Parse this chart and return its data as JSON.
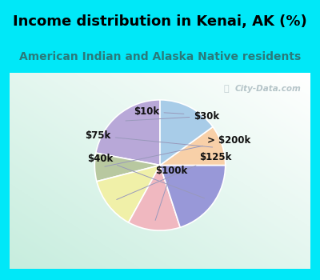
{
  "title": "Income distribution in Kenai, AK (%)",
  "subtitle": "American Indian and Alaska Native residents",
  "slices": [
    {
      "label": "$30k",
      "value": 22,
      "color": "#b8a8d8"
    },
    {
      "label": "> $200k",
      "value": 7,
      "color": "#b8c8a0"
    },
    {
      "label": "$125k",
      "value": 13,
      "color": "#f0f0a8"
    },
    {
      "label": "$100k",
      "value": 13,
      "color": "#f0b8c0"
    },
    {
      "label": "$40k",
      "value": 20,
      "color": "#9898d8"
    },
    {
      "label": "$75k",
      "value": 10,
      "color": "#f8d0a8"
    },
    {
      "label": "$10k",
      "value": 15,
      "color": "#a8cce8"
    }
  ],
  "bg_cyan": "#00e8f8",
  "bg_chart_top": "#f0faf8",
  "bg_chart_bottom": "#c8e8d8",
  "title_color": "#000000",
  "subtitle_color": "#2a7a7a",
  "label_color": "#111111",
  "label_fontsize": 8.5,
  "title_fontsize": 13,
  "subtitle_fontsize": 10,
  "startangle": 90,
  "watermark": "City-Data.com"
}
